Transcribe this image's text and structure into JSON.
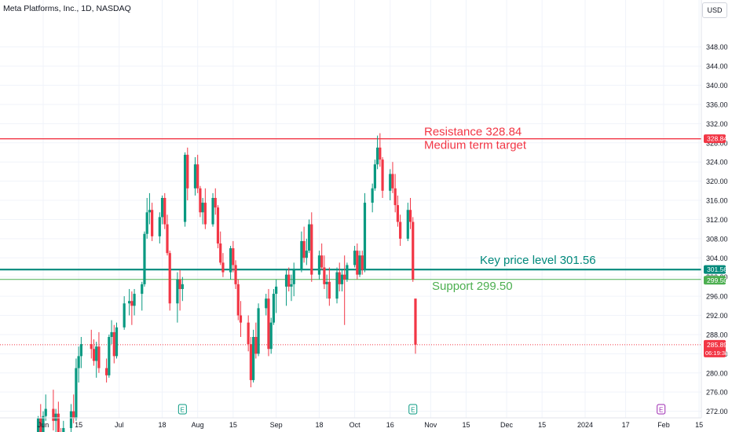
{
  "title": "Meta Platforms, Inc., 1D, NASDAQ",
  "currency_button": "USD",
  "colors": {
    "up": "#089981",
    "down": "#f23645",
    "resistance": "#f23645",
    "key_level": "#00897b",
    "support": "#4caf50",
    "last_price": "#f23645",
    "grid": "#f0f3fa",
    "axis_text": "#131722"
  },
  "annotations": {
    "resistance_text": "Resistance 328.84",
    "target_text": "Medium term target",
    "key_level_text": "Key price level 301.56",
    "support_text": "Support 299.50"
  },
  "price_tags": {
    "resistance": "328.84",
    "key_level": "301.56",
    "support": "299.50",
    "last_price": "285.89",
    "countdown": "06:19:38"
  },
  "earnings_markers": [
    {
      "label": "E",
      "date": "2023-07-26",
      "color": "#089981"
    },
    {
      "label": "E",
      "date": "2023-10-25",
      "color": "#089981"
    },
    {
      "label": "E",
      "date": "2024-01-31",
      "color": "#9c27b0"
    }
  ],
  "chart_data": {
    "type": "candlestick",
    "title": "Meta Platforms, Inc., 1D, NASDAQ",
    "ylim": [
      270,
      352
    ],
    "y_ticks": [
      "348.00",
      "344.00",
      "340.00",
      "336.00",
      "332.00",
      "328.00",
      "324.00",
      "320.00",
      "316.00",
      "312.00",
      "308.00",
      "304.00",
      "300.00",
      "296.00",
      "292.00",
      "288.00",
      "284.00",
      "280.00",
      "276.00",
      "272.00"
    ],
    "x_ticks": [
      {
        "label": "Jun",
        "date": "2023-06-01"
      },
      {
        "label": "15",
        "date": "2023-06-15"
      },
      {
        "label": "Jul",
        "date": "2023-07-01"
      },
      {
        "label": "18",
        "date": "2023-07-18"
      },
      {
        "label": "Aug",
        "date": "2023-08-01"
      },
      {
        "label": "15",
        "date": "2023-08-15"
      },
      {
        "label": "Sep",
        "date": "2023-09-01"
      },
      {
        "label": "18",
        "date": "2023-09-18"
      },
      {
        "label": "Oct",
        "date": "2023-10-02"
      },
      {
        "label": "16",
        "date": "2023-10-16"
      },
      {
        "label": "Nov",
        "date": "2023-11-01"
      },
      {
        "label": "15",
        "date": "2023-11-15"
      },
      {
        "label": "Dec",
        "date": "2023-12-01"
      },
      {
        "label": "15",
        "date": "2023-12-15"
      },
      {
        "label": "2024",
        "date": "2024-01-01"
      },
      {
        "label": "17",
        "date": "2024-01-17"
      },
      {
        "label": "Feb",
        "date": "2024-02-01"
      },
      {
        "label": "15",
        "date": "2024-02-15"
      }
    ],
    "levels": [
      {
        "name": "Resistance",
        "value": 328.84
      },
      {
        "name": "Key price level",
        "value": 301.56
      },
      {
        "name": "Support",
        "value": 299.5
      },
      {
        "name": "Last price",
        "value": 285.89
      }
    ],
    "candles": [
      {
        "d": "2023-05-30",
        "o": 265.0,
        "h": 271.0,
        "l": 264.0,
        "c": 270.5
      },
      {
        "d": "2023-05-31",
        "o": 270.5,
        "h": 273.5,
        "l": 266.0,
        "c": 267.5
      },
      {
        "d": "2023-06-01",
        "o": 267.5,
        "h": 272.0,
        "l": 266.0,
        "c": 271.0
      },
      {
        "d": "2023-06-02",
        "o": 271.0,
        "h": 275.5,
        "l": 270.0,
        "c": 272.5
      },
      {
        "d": "2023-06-05",
        "o": 272.5,
        "h": 276.5,
        "l": 268.0,
        "c": 270.0
      },
      {
        "d": "2023-06-06",
        "o": 270.0,
        "h": 272.5,
        "l": 266.5,
        "c": 271.5
      },
      {
        "d": "2023-06-07",
        "o": 271.5,
        "h": 274.0,
        "l": 266.0,
        "c": 267.5
      },
      {
        "d": "2023-06-08",
        "o": 267.5,
        "h": 268.5,
        "l": 264.5,
        "c": 265.5
      },
      {
        "d": "2023-06-09",
        "o": 265.5,
        "h": 270.0,
        "l": 264.5,
        "c": 268.5
      },
      {
        "d": "2023-06-12",
        "o": 268.5,
        "h": 273.5,
        "l": 266.0,
        "c": 272.0
      },
      {
        "d": "2023-06-13",
        "o": 272.0,
        "h": 275.5,
        "l": 269.5,
        "c": 270.5
      },
      {
        "d": "2023-06-14",
        "o": 270.5,
        "h": 283.0,
        "l": 270.0,
        "c": 281.0
      },
      {
        "d": "2023-06-15",
        "o": 281.0,
        "h": 285.5,
        "l": 278.0,
        "c": 283.5
      },
      {
        "d": "2023-06-16",
        "o": 283.5,
        "h": 287.5,
        "l": 281.0,
        "c": 286.0
      },
      {
        "d": "2023-06-20",
        "o": 286.0,
        "h": 289.0,
        "l": 283.0,
        "c": 285.0
      },
      {
        "d": "2023-06-21",
        "o": 285.0,
        "h": 287.0,
        "l": 281.5,
        "c": 282.5
      },
      {
        "d": "2023-06-22",
        "o": 282.5,
        "h": 286.5,
        "l": 279.0,
        "c": 285.5
      },
      {
        "d": "2023-06-23",
        "o": 285.5,
        "h": 288.5,
        "l": 280.0,
        "c": 281.0
      },
      {
        "d": "2023-06-26",
        "o": 281.0,
        "h": 283.0,
        "l": 278.0,
        "c": 279.5
      },
      {
        "d": "2023-06-27",
        "o": 279.5,
        "h": 288.0,
        "l": 279.0,
        "c": 287.5
      },
      {
        "d": "2023-06-28",
        "o": 287.5,
        "h": 291.0,
        "l": 286.0,
        "c": 288.5
      },
      {
        "d": "2023-06-29",
        "o": 288.5,
        "h": 290.0,
        "l": 282.0,
        "c": 283.5
      },
      {
        "d": "2023-06-30",
        "o": 283.5,
        "h": 290.5,
        "l": 283.0,
        "c": 289.5
      },
      {
        "d": "2023-07-03",
        "o": 289.5,
        "h": 296.0,
        "l": 289.0,
        "c": 294.5
      },
      {
        "d": "2023-07-05",
        "o": 294.5,
        "h": 297.5,
        "l": 292.0,
        "c": 295.0
      },
      {
        "d": "2023-07-06",
        "o": 295.0,
        "h": 297.0,
        "l": 290.0,
        "c": 294.0
      },
      {
        "d": "2023-07-07",
        "o": 294.0,
        "h": 297.5,
        "l": 292.0,
        "c": 296.5
      },
      {
        "d": "2023-07-10",
        "o": 296.5,
        "h": 299.0,
        "l": 293.0,
        "c": 298.5
      },
      {
        "d": "2023-07-11",
        "o": 298.5,
        "h": 309.5,
        "l": 298.0,
        "c": 309.0
      },
      {
        "d": "2023-07-12",
        "o": 309.0,
        "h": 316.5,
        "l": 308.0,
        "c": 313.5
      },
      {
        "d": "2023-07-13",
        "o": 313.5,
        "h": 317.5,
        "l": 311.0,
        "c": 314.0
      },
      {
        "d": "2023-07-14",
        "o": 314.0,
        "h": 315.5,
        "l": 307.5,
        "c": 308.5
      },
      {
        "d": "2023-07-17",
        "o": 308.5,
        "h": 313.5,
        "l": 307.0,
        "c": 312.5
      },
      {
        "d": "2023-07-18",
        "o": 312.5,
        "h": 317.0,
        "l": 311.0,
        "c": 316.5
      },
      {
        "d": "2023-07-19",
        "o": 316.5,
        "h": 317.5,
        "l": 310.0,
        "c": 311.0
      },
      {
        "d": "2023-07-20",
        "o": 311.0,
        "h": 313.0,
        "l": 304.5,
        "c": 305.0
      },
      {
        "d": "2023-07-21",
        "o": 305.0,
        "h": 305.5,
        "l": 293.0,
        "c": 294.5
      },
      {
        "d": "2023-07-24",
        "o": 294.5,
        "h": 301.0,
        "l": 290.5,
        "c": 299.5
      },
      {
        "d": "2023-07-25",
        "o": 299.5,
        "h": 301.5,
        "l": 293.0,
        "c": 297.5
      },
      {
        "d": "2023-07-26",
        "o": 297.5,
        "h": 300.0,
        "l": 295.0,
        "c": 298.5
      },
      {
        "d": "2023-07-27",
        "o": 311.5,
        "h": 326.0,
        "l": 310.5,
        "c": 325.5
      },
      {
        "d": "2023-07-28",
        "o": 325.5,
        "h": 327.0,
        "l": 316.0,
        "c": 318.5
      },
      {
        "d": "2023-07-31",
        "o": 318.5,
        "h": 325.0,
        "l": 317.0,
        "c": 323.5
      },
      {
        "d": "2023-08-01",
        "o": 323.5,
        "h": 325.5,
        "l": 317.5,
        "c": 318.5
      },
      {
        "d": "2023-08-02",
        "o": 318.5,
        "h": 319.0,
        "l": 312.5,
        "c": 313.5
      },
      {
        "d": "2023-08-03",
        "o": 313.5,
        "h": 316.5,
        "l": 311.0,
        "c": 315.5
      },
      {
        "d": "2023-08-04",
        "o": 315.5,
        "h": 318.5,
        "l": 310.0,
        "c": 311.0
      },
      {
        "d": "2023-08-07",
        "o": 311.0,
        "h": 317.5,
        "l": 310.5,
        "c": 316.5
      },
      {
        "d": "2023-08-08",
        "o": 316.5,
        "h": 318.5,
        "l": 313.0,
        "c": 314.5
      },
      {
        "d": "2023-08-09",
        "o": 314.5,
        "h": 315.0,
        "l": 306.0,
        "c": 307.0
      },
      {
        "d": "2023-08-10",
        "o": 307.0,
        "h": 309.5,
        "l": 302.5,
        "c": 303.0
      },
      {
        "d": "2023-08-11",
        "o": 303.0,
        "h": 305.0,
        "l": 300.0,
        "c": 301.0
      },
      {
        "d": "2023-08-14",
        "o": 301.0,
        "h": 306.5,
        "l": 299.5,
        "c": 306.0
      },
      {
        "d": "2023-08-15",
        "o": 306.0,
        "h": 307.5,
        "l": 301.0,
        "c": 302.5
      },
      {
        "d": "2023-08-16",
        "o": 302.5,
        "h": 303.5,
        "l": 297.5,
        "c": 298.5
      },
      {
        "d": "2023-08-17",
        "o": 298.5,
        "h": 299.5,
        "l": 291.0,
        "c": 292.0
      },
      {
        "d": "2023-08-18",
        "o": 292.0,
        "h": 295.0,
        "l": 287.5,
        "c": 290.5
      },
      {
        "d": "2023-08-21",
        "o": 290.5,
        "h": 292.0,
        "l": 284.5,
        "c": 286.0
      },
      {
        "d": "2023-08-22",
        "o": 286.0,
        "h": 287.5,
        "l": 277.0,
        "c": 278.5
      },
      {
        "d": "2023-08-23",
        "o": 278.5,
        "h": 289.0,
        "l": 278.0,
        "c": 287.5
      },
      {
        "d": "2023-08-24",
        "o": 287.5,
        "h": 290.5,
        "l": 283.0,
        "c": 284.0
      },
      {
        "d": "2023-08-25",
        "o": 284.0,
        "h": 294.5,
        "l": 283.5,
        "c": 293.5
      },
      {
        "d": "2023-08-28",
        "o": 293.5,
        "h": 296.5,
        "l": 292.0,
        "c": 295.5
      },
      {
        "d": "2023-08-29",
        "o": 295.5,
        "h": 297.5,
        "l": 283.5,
        "c": 285.0
      },
      {
        "d": "2023-08-30",
        "o": 285.0,
        "h": 291.5,
        "l": 284.0,
        "c": 290.5
      },
      {
        "d": "2023-08-31",
        "o": 290.5,
        "h": 297.5,
        "l": 290.0,
        "c": 296.5
      },
      {
        "d": "2023-09-01",
        "o": 296.5,
        "h": 299.5,
        "l": 292.5,
        "c": 298.0
      },
      {
        "d": "2023-09-05",
        "o": 298.0,
        "h": 301.5,
        "l": 294.0,
        "c": 300.5
      },
      {
        "d": "2023-09-06",
        "o": 300.5,
        "h": 302.0,
        "l": 297.0,
        "c": 298.0
      },
      {
        "d": "2023-09-07",
        "o": 298.0,
        "h": 300.5,
        "l": 295.0,
        "c": 298.5
      },
      {
        "d": "2023-09-08",
        "o": 298.5,
        "h": 303.0,
        "l": 296.0,
        "c": 301.5
      },
      {
        "d": "2023-09-11",
        "o": 301.5,
        "h": 309.5,
        "l": 301.0,
        "c": 307.5
      },
      {
        "d": "2023-09-12",
        "o": 307.5,
        "h": 310.5,
        "l": 303.0,
        "c": 304.0
      },
      {
        "d": "2023-09-13",
        "o": 304.0,
        "h": 308.0,
        "l": 302.5,
        "c": 305.5
      },
      {
        "d": "2023-09-14",
        "o": 305.5,
        "h": 312.0,
        "l": 305.0,
        "c": 311.0
      },
      {
        "d": "2023-09-15",
        "o": 311.0,
        "h": 313.5,
        "l": 299.0,
        "c": 300.5
      },
      {
        "d": "2023-09-18",
        "o": 300.5,
        "h": 305.5,
        "l": 299.5,
        "c": 304.5
      },
      {
        "d": "2023-09-19",
        "o": 304.5,
        "h": 307.0,
        "l": 301.5,
        "c": 302.0
      },
      {
        "d": "2023-09-20",
        "o": 302.0,
        "h": 304.5,
        "l": 297.5,
        "c": 298.5
      },
      {
        "d": "2023-09-21",
        "o": 298.5,
        "h": 300.5,
        "l": 295.5,
        "c": 299.0
      },
      {
        "d": "2023-09-22",
        "o": 299.0,
        "h": 302.0,
        "l": 294.0,
        "c": 295.5
      },
      {
        "d": "2023-09-25",
        "o": 295.5,
        "h": 302.0,
        "l": 294.5,
        "c": 301.0
      },
      {
        "d": "2023-09-26",
        "o": 301.0,
        "h": 303.0,
        "l": 297.0,
        "c": 298.5
      },
      {
        "d": "2023-09-27",
        "o": 298.5,
        "h": 301.5,
        "l": 297.0,
        "c": 300.5
      },
      {
        "d": "2023-09-28",
        "o": 300.5,
        "h": 304.5,
        "l": 290.0,
        "c": 299.5
      },
      {
        "d": "2023-09-29",
        "o": 299.5,
        "h": 303.0,
        "l": 299.0,
        "c": 302.5
      },
      {
        "d": "2023-10-02",
        "o": 302.5,
        "h": 306.5,
        "l": 302.0,
        "c": 305.5
      },
      {
        "d": "2023-10-03",
        "o": 305.5,
        "h": 307.0,
        "l": 299.5,
        "c": 300.5
      },
      {
        "d": "2023-10-04",
        "o": 300.5,
        "h": 305.5,
        "l": 300.0,
        "c": 304.5
      },
      {
        "d": "2023-10-05",
        "o": 304.5,
        "h": 305.5,
        "l": 300.5,
        "c": 301.5
      },
      {
        "d": "2023-10-06",
        "o": 301.5,
        "h": 317.5,
        "l": 301.0,
        "c": 315.5
      },
      {
        "d": "2023-10-09",
        "o": 315.5,
        "h": 319.5,
        "l": 313.5,
        "c": 318.5
      },
      {
        "d": "2023-10-10",
        "o": 318.5,
        "h": 324.5,
        "l": 318.0,
        "c": 323.5
      },
      {
        "d": "2023-10-11",
        "o": 323.5,
        "h": 329.5,
        "l": 322.5,
        "c": 327.0
      },
      {
        "d": "2023-10-12",
        "o": 327.0,
        "h": 330.0,
        "l": 323.0,
        "c": 324.5
      },
      {
        "d": "2023-10-13",
        "o": 324.5,
        "h": 325.0,
        "l": 316.5,
        "c": 318.0
      },
      {
        "d": "2023-10-16",
        "o": 318.0,
        "h": 322.5,
        "l": 316.0,
        "c": 321.5
      },
      {
        "d": "2023-10-17",
        "o": 321.5,
        "h": 324.0,
        "l": 317.5,
        "c": 318.5
      },
      {
        "d": "2023-10-18",
        "o": 318.5,
        "h": 321.5,
        "l": 313.5,
        "c": 315.0
      },
      {
        "d": "2023-10-19",
        "o": 315.0,
        "h": 317.0,
        "l": 310.5,
        "c": 311.5
      },
      {
        "d": "2023-10-20",
        "o": 311.5,
        "h": 313.0,
        "l": 306.5,
        "c": 308.0
      },
      {
        "d": "2023-10-23",
        "o": 308.0,
        "h": 315.5,
        "l": 307.5,
        "c": 314.0
      },
      {
        "d": "2023-10-24",
        "o": 314.0,
        "h": 316.5,
        "l": 310.0,
        "c": 311.5
      },
      {
        "d": "2023-10-25",
        "o": 311.5,
        "h": 312.5,
        "l": 299.0,
        "c": 299.5
      },
      {
        "d": "2023-10-26",
        "o": 295.5,
        "h": 295.5,
        "l": 284.0,
        "c": 285.89
      }
    ]
  }
}
